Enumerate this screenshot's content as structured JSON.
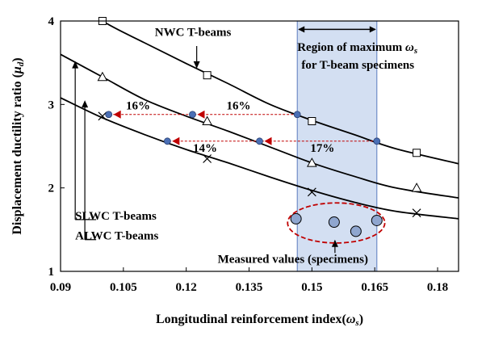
{
  "chart_data": {
    "type": "line",
    "xlabel": "Longitudinal reinforcement index(",
    "xlabel_symbol": "ω",
    "xlabel_sub": "s",
    "xlabel_end": ")",
    "ylabel": "Displacement ductility ratio (",
    "ylabel_symbol": "μ",
    "ylabel_sub": "d",
    "ylabel_end": ")",
    "xlim": [
      0.09,
      0.185
    ],
    "ylim": [
      1,
      4
    ],
    "x_ticks": [
      {
        "v": 0.09,
        "label": "0.09"
      },
      {
        "v": 0.105,
        "label": "0.105"
      },
      {
        "v": 0.12,
        "label": "0.12"
      },
      {
        "v": 0.135,
        "label": "0.135"
      },
      {
        "v": 0.15,
        "label": "0.15"
      },
      {
        "v": 0.165,
        "label": "0.165"
      },
      {
        "v": 0.18,
        "label": "0.18"
      }
    ],
    "y_ticks": [
      {
        "v": 1,
        "label": "1"
      },
      {
        "v": 2,
        "label": "2"
      },
      {
        "v": 3,
        "label": "3"
      },
      {
        "v": 4,
        "label": "4"
      }
    ],
    "curves": [
      {
        "x": [
          0.09,
          0.1,
          0.11,
          0.12,
          0.13,
          0.14,
          0.15,
          0.16,
          0.17,
          0.185
        ],
        "y": [
          4.35,
          4.0,
          3.74,
          3.49,
          3.25,
          3.0,
          2.81,
          2.64,
          2.47,
          2.29
        ]
      },
      {
        "x": [
          0.09,
          0.1,
          0.11,
          0.12,
          0.13,
          0.14,
          0.15,
          0.16,
          0.17,
          0.185
        ],
        "y": [
          3.6,
          3.33,
          3.06,
          2.86,
          2.68,
          2.49,
          2.3,
          2.14,
          2.0,
          1.88
        ]
      },
      {
        "x": [
          0.09,
          0.1,
          0.11,
          0.12,
          0.13,
          0.14,
          0.15,
          0.16,
          0.17,
          0.185
        ],
        "y": [
          3.08,
          2.84,
          2.64,
          2.46,
          2.3,
          2.13,
          1.97,
          1.83,
          1.72,
          1.63
        ]
      }
    ],
    "markers": [
      {
        "shape": "square",
        "x": [
          0.1,
          0.125,
          0.15,
          0.175
        ],
        "y": [
          4.0,
          3.35,
          2.8,
          2.42
        ]
      },
      {
        "shape": "triangle",
        "x": [
          0.1,
          0.125,
          0.15,
          0.175
        ],
        "y": [
          3.33,
          2.8,
          2.3,
          2.0
        ]
      },
      {
        "shape": "cross",
        "x": [
          0.1,
          0.125,
          0.15,
          0.175
        ],
        "y": [
          2.86,
          2.35,
          1.95,
          1.7
        ]
      }
    ],
    "highlight_points": [
      {
        "x": 0.1015,
        "y": 2.88
      },
      {
        "x": 0.1215,
        "y": 2.88
      },
      {
        "x": 0.1465,
        "y": 2.88
      },
      {
        "x": 0.1155,
        "y": 2.56
      },
      {
        "x": 0.1375,
        "y": 2.56
      },
      {
        "x": 0.1655,
        "y": 2.56
      }
    ],
    "dashed_arrows": [
      {
        "x1": 0.1465,
        "x2": 0.1015,
        "y": 2.88
      },
      {
        "x1": 0.1655,
        "x2": 0.1155,
        "y": 2.56
      }
    ],
    "arrowheads": [
      {
        "x": 0.1015,
        "y": 2.88
      },
      {
        "x": 0.1215,
        "y": 2.88
      },
      {
        "x": 0.1155,
        "y": 2.56
      },
      {
        "x": 0.1375,
        "y": 2.56
      }
    ],
    "measured": {
      "x": [
        0.1462,
        0.1553,
        0.1605,
        0.1655
      ],
      "y": [
        1.63,
        1.59,
        1.48,
        1.61
      ],
      "ellipse": {
        "cx": 0.1558,
        "cy": 1.58,
        "rx": 0.0116,
        "ry": 0.24
      }
    },
    "region": {
      "x0": 0.1465,
      "x1": 0.1655,
      "y0": 1,
      "y1": 4,
      "color": "#d3dff2"
    },
    "colors": {
      "curve": "#000000",
      "point_fill": "#4a6fb5",
      "accent": "#c00000",
      "region": "#d3dff2"
    },
    "grid": false,
    "percent_labels": [
      {
        "text": "16%",
        "x": 0.1085,
        "y": 2.94
      },
      {
        "text": "16%",
        "x": 0.1325,
        "y": 2.94
      },
      {
        "text": "14%",
        "x": 0.1245,
        "y": 2.43
      },
      {
        "text": "17%",
        "x": 0.1525,
        "y": 2.43
      }
    ],
    "annotations": [
      {
        "text": "NWC T-beams",
        "x": 0.1125,
        "y": 3.82
      },
      {
        "text": "Region of maximum ",
        "symbol": "ω",
        "sub": "s",
        "x": 0.1465,
        "y": 3.64
      },
      {
        "text": "for T-beam specimens",
        "x": 0.1475,
        "y": 3.43
      },
      {
        "text": "SLWC T-beams",
        "x": 0.0935,
        "y": 1.62
      },
      {
        "text": "ALWC T-beams",
        "x": 0.0935,
        "y": 1.38
      },
      {
        "text": "Measured values (specimens)",
        "x": 0.1275,
        "y": 1.1
      }
    ]
  }
}
